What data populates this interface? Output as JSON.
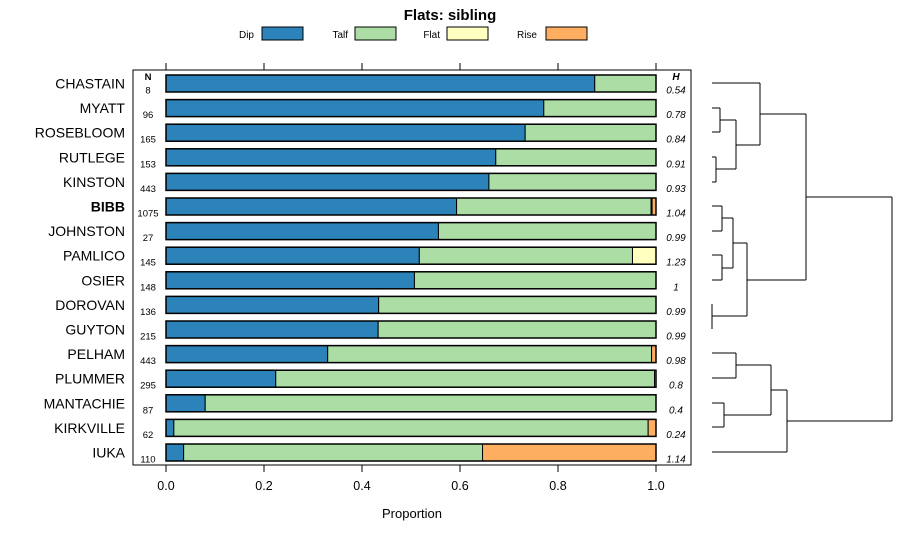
{
  "chart_data": {
    "type": "bar",
    "orientation": "horizontal",
    "stacked": true,
    "title": "Flats: sibling",
    "xlabel": "Proportion",
    "ylabel": "",
    "xlim": [
      0,
      1
    ],
    "x_ticks": [
      "0.0",
      "0.2",
      "0.4",
      "0.6",
      "0.8",
      "1.0"
    ],
    "n_header": "N",
    "h_header": "H",
    "highlighted": "BIBB",
    "legend": [
      {
        "name": "Dip",
        "color": "#2b83ba"
      },
      {
        "name": "Talf",
        "color": "#abdda4"
      },
      {
        "name": "Flat",
        "color": "#ffffbf"
      },
      {
        "name": "Rise",
        "color": "#fdae61"
      }
    ],
    "categories": [
      "CHASTAIN",
      "MYATT",
      "ROSEBLOOM",
      "RUTLEGE",
      "KINSTON",
      "BIBB",
      "JOHNSTON",
      "PAMLICO",
      "OSIER",
      "DOROVAN",
      "GUYTON",
      "PELHAM",
      "PLUMMER",
      "MANTACHIE",
      "KIRKVILLE",
      "IUKA"
    ],
    "n": [
      "8",
      "96",
      "165",
      "153",
      "443",
      "1075",
      "27",
      "145",
      "148",
      "136",
      "215",
      "443",
      "295",
      "87",
      "62",
      "110"
    ],
    "h": [
      "0.54",
      "0.78",
      "0.84",
      "0.91",
      "0.93",
      "1.04",
      "0.99",
      "1.23",
      "1",
      "0.99",
      "0.99",
      "0.98",
      "0.8",
      "0.4",
      "0.24",
      "1.14"
    ],
    "series": [
      {
        "name": "Dip",
        "values": [
          0.875,
          0.771,
          0.733,
          0.673,
          0.659,
          0.593,
          0.556,
          0.517,
          0.507,
          0.434,
          0.433,
          0.33,
          0.224,
          0.08,
          0.016,
          0.036
        ]
      },
      {
        "name": "Talf",
        "values": [
          0.125,
          0.229,
          0.267,
          0.327,
          0.341,
          0.397,
          0.444,
          0.435,
          0.493,
          0.566,
          0.567,
          0.661,
          0.773,
          0.92,
          0.968,
          0.61
        ]
      },
      {
        "name": "Flat",
        "values": [
          0,
          0,
          0,
          0,
          0,
          0.002,
          0,
          0.048,
          0,
          0,
          0,
          0,
          0,
          0,
          0,
          0
        ]
      },
      {
        "name": "Rise",
        "values": [
          0,
          0,
          0,
          0,
          0,
          0.008,
          0,
          0,
          0,
          0,
          0,
          0.009,
          0.003,
          0,
          0.016,
          0.354
        ]
      }
    ]
  }
}
